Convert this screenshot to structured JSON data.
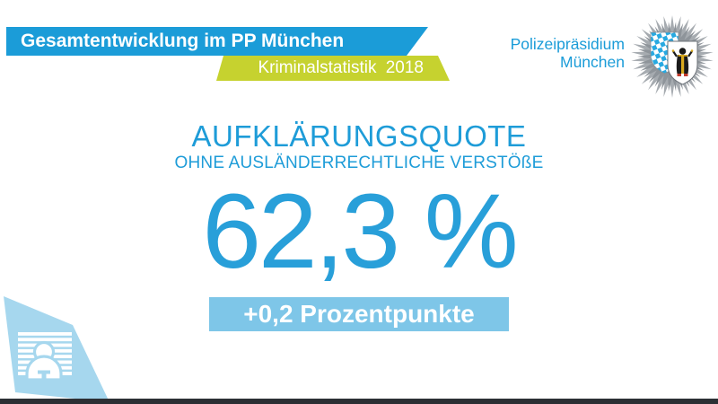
{
  "slide": {
    "header": {
      "banner_title": "Gesamtentwicklung im PP München",
      "banner_subtitle": "Kriminalstatistik 2018"
    },
    "org": {
      "name_line1": "Polizeipräsidium",
      "name_line2": "München"
    },
    "stat": {
      "title": "AUFKLÄRUNGSQUOTE",
      "subtitle": "OHNE AUSLÄNDERRECHTLICHE VERSTÖßE",
      "value": "62,3 %",
      "value_percent": 62.3,
      "delta_label": "+0,2 Prozentpunkte",
      "delta_percentage_points": 0.2
    },
    "icons": {
      "police_star": "bavarian-police-star-badge",
      "mugshot": "prisoner-mugshot-icon"
    },
    "colors": {
      "primary_blue": "#1b9cd8",
      "badge_light_blue": "#7ec6e8",
      "deco_pale_blue": "#a6d7ee",
      "accent_green": "#c6d22f",
      "footer_dark": "#2c2f34",
      "star_gray": "#a6abb0"
    }
  }
}
